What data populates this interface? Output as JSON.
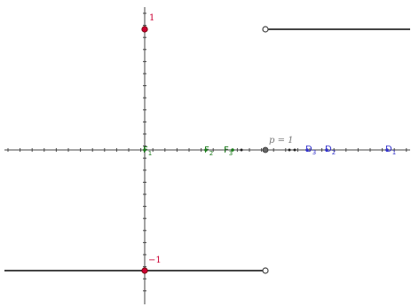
{
  "colors": {
    "axis": "#444444",
    "step_line": "#444444",
    "red_point": "#cc0033",
    "green": "#1a7a1a",
    "blue": "#3333cc",
    "gray_label": "#777777"
  },
  "axis_labels": {
    "y_top": "1",
    "y_bottom": "−1"
  },
  "marker": {
    "label": "p = 1"
  },
  "points_green": [
    {
      "name": "F",
      "sub": "1"
    },
    {
      "name": "F",
      "sub": "2"
    },
    {
      "name": "F",
      "sub": "3"
    }
  ],
  "points_blue": [
    {
      "name": "D",
      "sub": "3"
    },
    {
      "name": "D",
      "sub": "2"
    },
    {
      "name": "D",
      "sub": "1"
    }
  ]
}
